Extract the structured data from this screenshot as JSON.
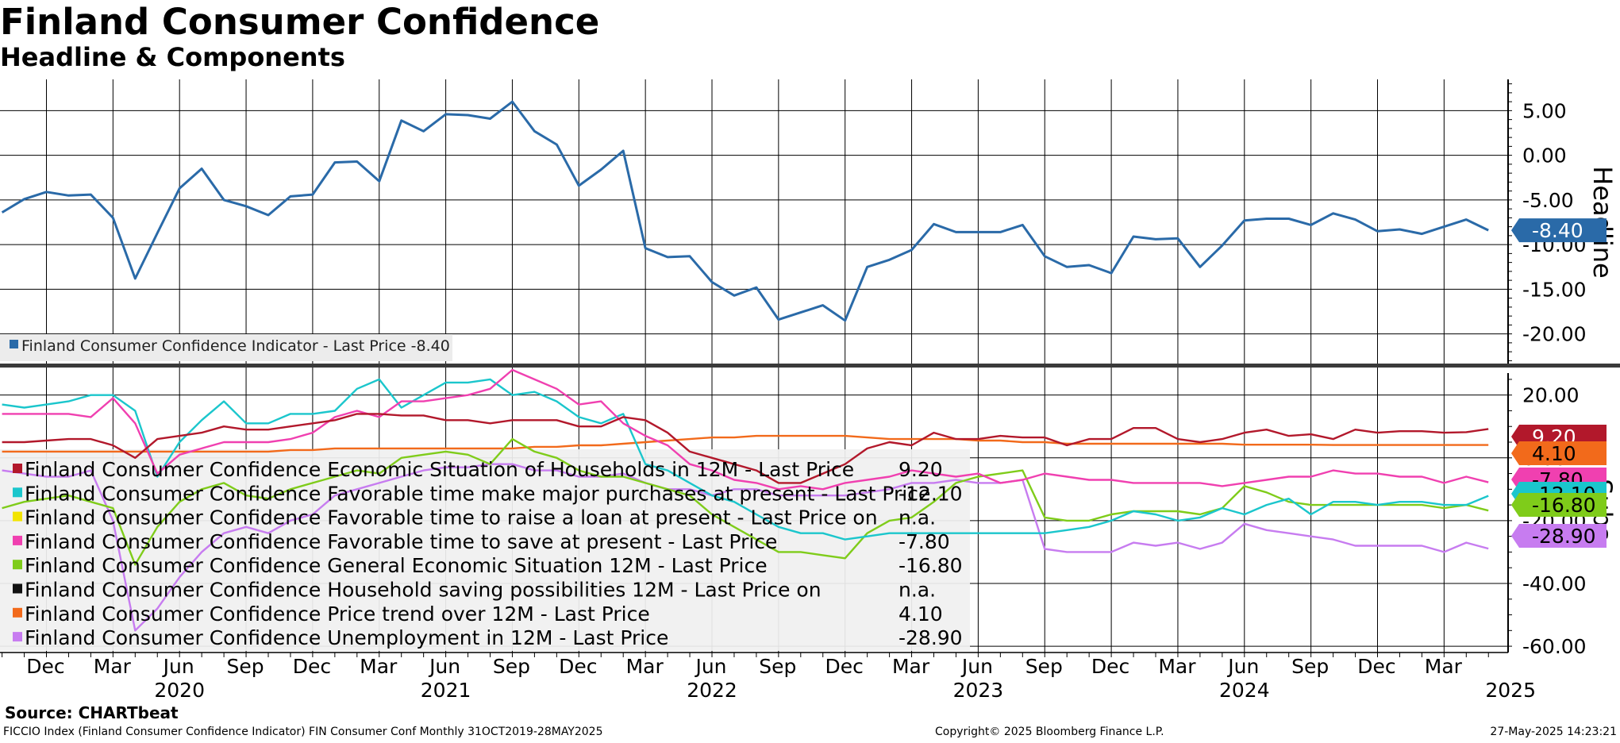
{
  "title": "Finland Consumer Confidence",
  "subtitle": "Headline & Components",
  "source": "Source: CHARTbeat",
  "footer": {
    "left": "FICCIO Index (Finland Consumer Confidence Indicator) FIN Consumer Conf  Monthly 31OCT2019-28MAY2025",
    "center": "Copyright© 2025 Bloomberg Finance L.P.",
    "right": "27-May-2025 14:23:21"
  },
  "colors": {
    "headline": "#2a6aa8",
    "econ_households": "#b2182b",
    "major_purchases": "#1bc6cc",
    "raise_loan": "#f2e400",
    "save_now": "#f040b0",
    "general_econ": "#7fcc1a",
    "saving_possibilities": "#111111",
    "price_trend": "#f26a1b",
    "unemployment": "#c77cf0"
  },
  "chart_data": [
    {
      "type": "line",
      "panel": "Headline",
      "axis_label": "Headline",
      "ylim": [
        -23.5,
        8.5
      ],
      "yticks": [
        5,
        0,
        -5,
        -10,
        -15,
        -20
      ],
      "ytick_labels": [
        "5.00",
        "0.00",
        "-5.00",
        "-10.00",
        "-15.00",
        "-20.00"
      ],
      "x_month_labels": [
        "Dec",
        "Mar",
        "Jun",
        "Sep",
        "Dec",
        "Mar",
        "Jun",
        "Sep",
        "Dec",
        "Mar",
        "Jun",
        "Sep",
        "Dec",
        "Mar",
        "Jun",
        "Sep",
        "Dec",
        "Mar",
        "Jun",
        "Sep",
        "Dec",
        "Mar"
      ],
      "x_year_labels": [
        "2020",
        "2021",
        "2022",
        "2023",
        "2024",
        "2025"
      ],
      "x_start": "Oct 2019",
      "legend_title": "Finland Consumer Confidence Indicator - Last Price -8.40",
      "last_value_label": "-8.40",
      "series": [
        {
          "name": "Finland Consumer Confidence Indicator",
          "color_key": "headline",
          "values": [
            -6.4,
            -4.9,
            -4.1,
            -4.5,
            -4.4,
            -7.0,
            -13.8,
            -8.7,
            -3.7,
            -1.5,
            -5.0,
            -5.7,
            -6.7,
            -4.6,
            -4.4,
            -0.8,
            -0.7,
            -2.9,
            3.9,
            2.7,
            4.6,
            4.5,
            4.1,
            6.0,
            2.7,
            1.2,
            -3.4,
            -1.6,
            0.5,
            -10.4,
            -11.4,
            -11.3,
            -14.2,
            -15.7,
            -14.8,
            -18.4,
            -17.6,
            -16.8,
            -18.5,
            -12.5,
            -11.7,
            -10.6,
            -7.7,
            -8.6,
            -8.6,
            -8.6,
            -7.8,
            -11.3,
            -12.5,
            -12.3,
            -13.2,
            -9.1,
            -9.4,
            -9.3,
            -12.5,
            -10.1,
            -7.3,
            -7.1,
            -7.1,
            -7.8,
            -6.5,
            -7.2,
            -8.5,
            -8.3,
            -8.8,
            -8.0,
            -7.2,
            -8.4
          ]
        }
      ]
    },
    {
      "type": "line",
      "panel": "Subs",
      "axis_label": "Subs",
      "ylim": [
        -62,
        27
      ],
      "yticks": [
        20,
        0,
        -20,
        -40,
        -60
      ],
      "ytick_labels": [
        "20.00",
        "0.00",
        "-20.00",
        "-40.00",
        "-60.00"
      ],
      "legend": [
        {
          "label": "Finland Consumer Confidence Economic Situation of Households in 12M - Last Price",
          "value": "9.20",
          "color_key": "econ_households"
        },
        {
          "label": "Finland Consumer Confidence Favorable time make major purchases at present - Last Price",
          "value": "-12.10",
          "color_key": "major_purchases"
        },
        {
          "label": "Finland Consumer Confidence Favorable time to raise a loan at present - Last Price on",
          "value": "n.a.",
          "color_key": "raise_loan"
        },
        {
          "label": "Finland Consumer Confidence Favorable time to save at present - Last Price",
          "value": "-7.80",
          "color_key": "save_now"
        },
        {
          "label": "Finland Consumer Confidence General Economic Situation 12M - Last Price",
          "value": "-16.80",
          "color_key": "general_econ"
        },
        {
          "label": "Finland Consumer Confidence Household saving possibilities 12M - Last Price on",
          "value": "n.a.",
          "color_key": "saving_possibilities"
        },
        {
          "label": "Finland Consumer Confidence Price trend over 12M - Last Price",
          "value": "4.10",
          "color_key": "price_trend"
        },
        {
          "label": "Finland Consumer Confidence Unemployment in 12M - Last Price",
          "value": "-28.90",
          "color_key": "unemployment"
        }
      ],
      "last_value_labels": [
        {
          "text": "9.20",
          "value": 9.2,
          "color_key": "econ_households"
        },
        {
          "text": "4.10",
          "value": 4.1,
          "color_key": "price_trend"
        },
        {
          "text": "-7.80",
          "value": -7.8,
          "color_key": "save_now"
        },
        {
          "text": "-12.10",
          "value": -12.1,
          "color_key": "major_purchases"
        },
        {
          "text": "-16.80",
          "value": -16.8,
          "color_key": "general_econ"
        },
        {
          "text": "-28.90",
          "value": -28.9,
          "color_key": "unemployment"
        }
      ],
      "series": [
        {
          "name": "Economic Situation of Households in 12M",
          "color_key": "econ_households",
          "values": [
            5,
            5,
            5.5,
            6,
            6,
            4,
            0,
            6,
            7,
            8,
            10,
            9,
            9,
            10,
            11,
            12,
            14,
            14,
            13.5,
            13.5,
            12,
            12,
            11,
            12,
            12,
            12,
            10,
            10,
            13,
            12,
            8,
            2,
            0,
            -2,
            -4,
            -8,
            -8,
            -5,
            -2,
            3,
            5,
            4,
            8,
            6,
            6,
            7,
            6.5,
            6.5,
            4,
            6,
            6,
            9.5,
            9.5,
            6,
            5,
            6,
            8,
            9,
            7,
            7.5,
            6,
            9,
            8,
            8.5,
            8.5,
            8,
            8.2,
            9.2
          ]
        },
        {
          "name": "Favorable time make major purchases at present",
          "color_key": "major_purchases",
          "values": [
            17,
            16,
            17,
            18,
            20,
            20,
            15,
            -6,
            5,
            12,
            18,
            11,
            11,
            14,
            14,
            15,
            22,
            25,
            16,
            20,
            24,
            24,
            25,
            20,
            21,
            18,
            13,
            11,
            14,
            -2,
            -4,
            -8,
            -12,
            -14,
            -18,
            -22,
            -24,
            -24,
            -26,
            -25,
            -24,
            -24,
            -24,
            -24,
            -24,
            -24,
            -24,
            -24,
            -23,
            -22,
            -20,
            -17,
            -18,
            -20,
            -19,
            -16,
            -18,
            -15,
            -13,
            -18,
            -14,
            -14,
            -15,
            -14,
            -14,
            -15,
            -15,
            -12.1
          ]
        },
        {
          "name": "Favorable time to save at present",
          "color_key": "save_now",
          "values": [
            14,
            14,
            14,
            14,
            13,
            19,
            11,
            -5,
            1,
            3,
            5,
            5,
            5,
            6,
            8,
            13,
            15,
            13,
            18,
            18,
            19,
            20,
            22,
            28,
            25,
            22,
            17,
            18,
            11,
            7,
            4,
            -2,
            -4,
            -7,
            -8,
            -10,
            -9,
            -10,
            -8,
            -7,
            -6,
            -4,
            -5,
            -6,
            -5,
            -8,
            -7,
            -5,
            -6,
            -7,
            -7,
            -8,
            -8,
            -8,
            -8,
            -9,
            -8,
            -7,
            -6,
            -6,
            -4,
            -5,
            -5,
            -6,
            -6,
            -8,
            -6,
            -7.8
          ]
        },
        {
          "name": "General Economic Situation 12M",
          "color_key": "general_econ",
          "values": [
            -16,
            -14,
            -13,
            -12,
            -14,
            -16,
            -34,
            -22,
            -14,
            -10,
            -8,
            -12,
            -13,
            -10,
            -8,
            -6,
            -4,
            -5,
            0,
            1,
            2,
            1,
            -2,
            6,
            2,
            0,
            -4,
            -6,
            -6,
            -8,
            -10,
            -12,
            -18,
            -22,
            -26,
            -30,
            -30,
            -31,
            -32,
            -24,
            -20,
            -19,
            -14,
            -8,
            -6,
            -5,
            -4,
            -19,
            -20,
            -20,
            -18,
            -17,
            -17,
            -17,
            -18,
            -16,
            -9,
            -11,
            -14,
            -15,
            -15,
            -15,
            -15,
            -15,
            -15,
            -16,
            -15,
            -16.8
          ]
        },
        {
          "name": "Price trend over 12M",
          "color_key": "price_trend",
          "values": [
            2,
            2,
            2,
            2,
            2,
            2,
            2,
            2,
            2,
            2,
            2,
            2,
            2,
            2.5,
            2.5,
            3,
            3,
            3,
            3,
            3,
            3,
            3,
            3,
            3,
            3.5,
            3.5,
            4,
            4,
            4.5,
            5,
            5.5,
            6,
            6.5,
            6.5,
            7,
            7,
            7,
            7,
            7,
            6.5,
            6,
            6,
            6,
            6,
            5.5,
            5.5,
            5,
            5,
            4.5,
            4.5,
            4.5,
            4.5,
            4.5,
            4.5,
            4.5,
            4.5,
            4.2,
            4.2,
            4.2,
            4.2,
            4.1,
            4.1,
            4.1,
            4.1,
            4.1,
            4.1,
            4.1,
            4.1
          ]
        },
        {
          "name": "Unemployment in 12M",
          "color_key": "unemployment",
          "values": [
            -4,
            -5,
            -6,
            -6,
            -4,
            -20,
            -55,
            -48,
            -38,
            -30,
            -24,
            -22,
            -24,
            -20,
            -18,
            -12,
            -10,
            -8,
            -6,
            -4,
            -3,
            -3,
            -2,
            -2,
            -4,
            -4,
            -6,
            -6,
            -5,
            -8,
            -10,
            -10,
            -12,
            -10,
            -10,
            -12,
            -12,
            -12,
            -12,
            -11,
            -10,
            -8,
            -8,
            -7,
            -8,
            -8,
            -7,
            -29,
            -30,
            -30,
            -30,
            -27,
            -28,
            -27,
            -29,
            -27,
            -21,
            -23,
            -24,
            -25,
            -26,
            -28,
            -28,
            -28,
            -28,
            -30,
            -27,
            -28.9
          ]
        }
      ]
    }
  ]
}
